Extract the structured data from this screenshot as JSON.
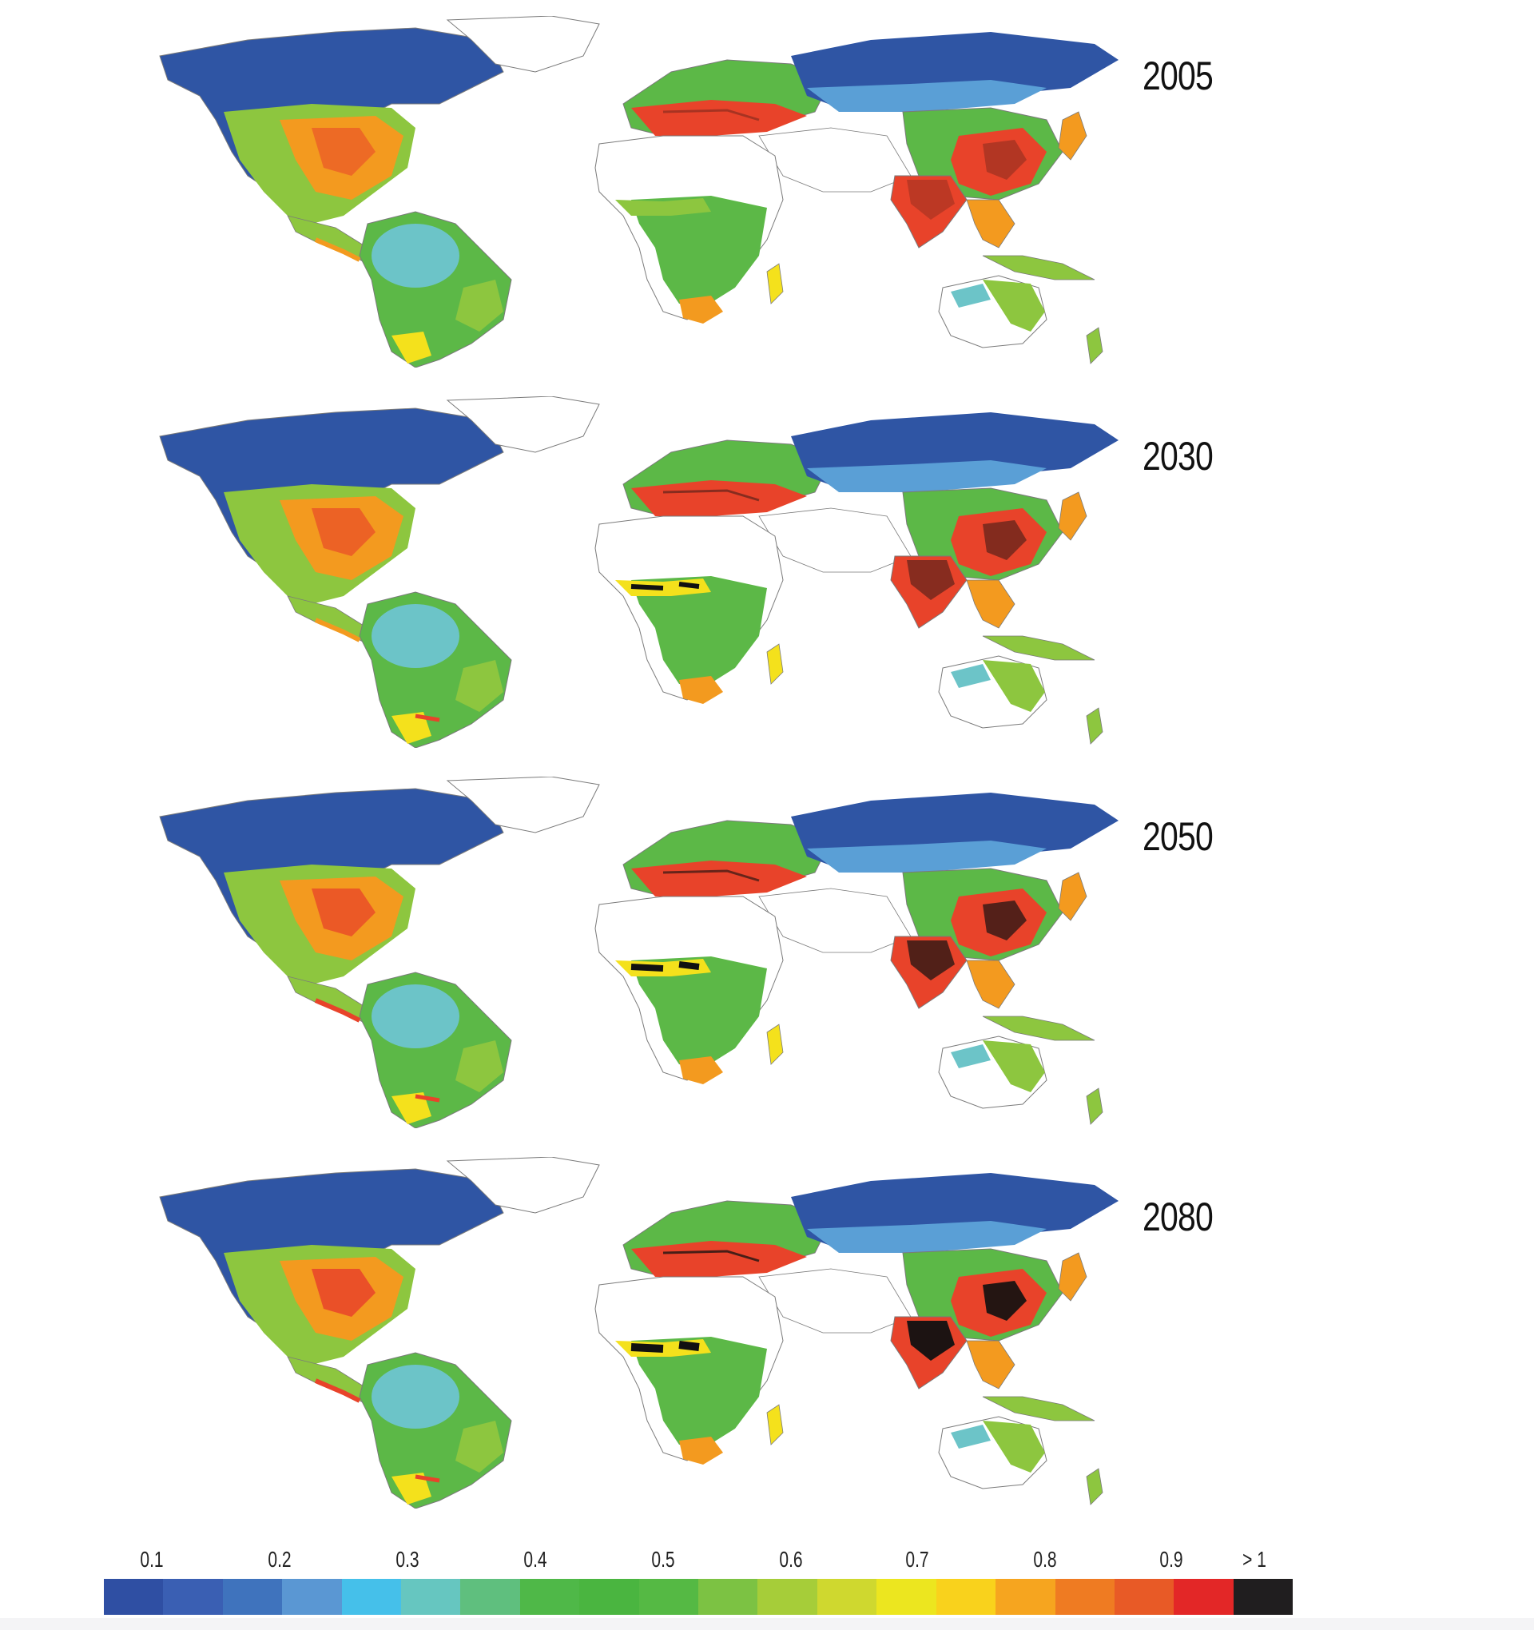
{
  "panels": [
    {
      "year": "2005"
    },
    {
      "year": "2030"
    },
    {
      "year": "2050"
    },
    {
      "year": "2080"
    }
  ],
  "legend": {
    "ticks": [
      "0.1",
      "0.2",
      "0.3",
      "0.4",
      "0.5",
      "0.6",
      "0.7",
      "0.8",
      "0.9",
      "> 1"
    ],
    "colors": [
      "#2f4fa3",
      "#3a5fb3",
      "#3f73bd",
      "#5a97d3",
      "#45c0ea",
      "#66c6c0",
      "#5fbf7e",
      "#4fb848",
      "#4ab540",
      "#55b944",
      "#7cc243",
      "#a6cd39",
      "#cfd82f",
      "#ece61f",
      "#f9d21c",
      "#f6a51f",
      "#ef7b22",
      "#e85a26",
      "#e32727",
      "#201e1f"
    ]
  },
  "colors": {
    "ocean": "#ffffff",
    "boreal": "#2f55a4",
    "tundra": "#3f73bd",
    "temperate": "#5a9fd6",
    "moist": "#6cc4c8",
    "green": "#5cb847",
    "light_green": "#8dc63f",
    "yellow": "#f4e11c",
    "orange": "#f39a1f",
    "red": "#e8432a",
    "black": "#111111",
    "desert": "#ffffff",
    "outline": "#7a7a7a"
  }
}
